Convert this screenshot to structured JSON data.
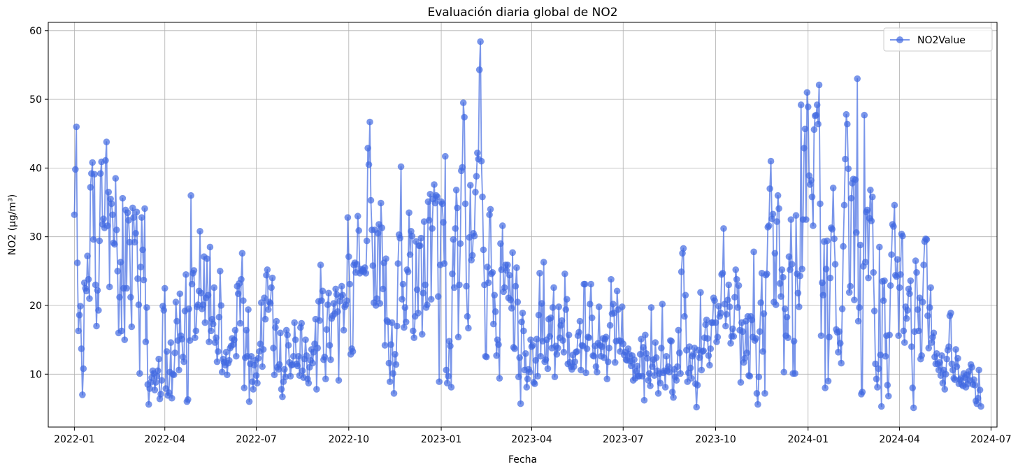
{
  "chart_data": {
    "type": "line",
    "title": "Evaluación diaria global de NO2",
    "xlabel": "Fecha",
    "ylabel": "NO2 (µg/m³)",
    "x_axis": "date",
    "xlim": [
      "2021-12-06",
      "2024-07-07"
    ],
    "ylim": [
      2.3,
      61.2
    ],
    "x_ticks": [
      "2022-01",
      "2022-04",
      "2022-07",
      "2022-10",
      "2023-01",
      "2023-04",
      "2023-07",
      "2023-10",
      "2024-01",
      "2024-04",
      "2024-07"
    ],
    "y_ticks": [
      10,
      20,
      30,
      40,
      50,
      60
    ],
    "grid": true,
    "legend": "top-right",
    "marker": "circle",
    "series": [
      {
        "name": "NO2Value",
        "color": "#4169e1",
        "x_start": "2022-01-01",
        "x_step_days": 1,
        "values": [
          33.2,
          39.8,
          46,
          26.2,
          16.3,
          18.6,
          19.9,
          13.7,
          7,
          10.8,
          23.3,
          22.5,
          22.1,
          27.2,
          23.8,
          21,
          37.2,
          39.2,
          40.8,
          29.6,
          39.1,
          23,
          17,
          22.2,
          19.3,
          29.4,
          39.2,
          40.9,
          31.8,
          32.6,
          31.3,
          41.1,
          43.8,
          31.6,
          36.5,
          22.7,
          35.5,
          34.8,
          33.2,
          29.1,
          28.9,
          38.5,
          31,
          25,
          16,
          21.2,
          26.3,
          16.3,
          35.6,
          22.5,
          15,
          33.9,
          22.5,
          33.5,
          32.4,
          29.2,
          21.2,
          16.9,
          34.2,
          32.8,
          29.2,
          30.5,
          33.6,
          23.9,
          20.1,
          10.1,
          25.6,
          32.8,
          28.1,
          23.7,
          34.1,
          14.7,
          19.7,
          8.5,
          5.6,
          7.9,
          8.8,
          9.5,
          10.5,
          10.1,
          7.7,
          8.8,
          9.7,
          10.5,
          12.2,
          6.4,
          7.1,
          9.1,
          19.9,
          19.3,
          22.5,
          7.9,
          13.3,
          6.9,
          7.3,
          10.3,
          14.6,
          6.5,
          10,
          9.9,
          13.1,
          20.5,
          17.7,
          14.9,
          10.6,
          21.7,
          15.6,
          15.1,
          12.5,
          11.8,
          19.2,
          24.5,
          6,
          6.3,
          19.5,
          14.9,
          36,
          23.1,
          24.7,
          25.1,
          15.3,
          16.3,
          19.8,
          20.1,
          22.1,
          30.8,
          21.8,
          19.5,
          20.1,
          27.1,
          17.5,
          21.1,
          26.8,
          21.5,
          14.7,
          28.5,
          16.3,
          18,
          17.3,
          22.6,
          14.6,
          15.3,
          11.8,
          13.3,
          18.3,
          25,
          20,
          10.3,
          12.2,
          11.7,
          11.3,
          13.2,
          9.9,
          11.6,
          12,
          13.8,
          14.1,
          15.2,
          14.3,
          15,
          16.4,
          12.6,
          22.8,
          21.7,
          23.2,
          17.4,
          23.8,
          27.6,
          20.7,
          8,
          12.4,
          16.4,
          12.6,
          19.4,
          6,
          11.5,
          12.6,
          8.9,
          7.8,
          11.3,
          12,
          9.8,
          8.7,
          12.3,
          13.3,
          14.4,
          20.4,
          11.1,
          13.6,
          21.1,
          18,
          24.4,
          25.2,
          19.4,
          20.5,
          20.3,
          22.6,
          24,
          13.8,
          9.9,
          16.8,
          17.7,
          11,
          10.7,
          11.4,
          16,
          7.8,
          6.7,
          8.9,
          10.7,
          9.6,
          16.4,
          15.7,
          14.2,
          11.7,
          9.7,
          11.3,
          11.4,
          12.6,
          17.5,
          15,
          11.5,
          11.2,
          12.6,
          9.8,
          16.8,
          17.4,
          10.5,
          9.5,
          12.2,
          15,
          12.7,
          9.3,
          8.7,
          11,
          12,
          13.6,
          11.6,
          13.2,
          14.4,
          18,
          7.8,
          13.8,
          20.6,
          17.8,
          25.9,
          20.7,
          22.1,
          12.1,
          12.5,
          9.3,
          16.5,
          20.1,
          21.8,
          14.2,
          12.1,
          18.1,
          18.5,
          20.3,
          18.8,
          22.4,
          21.6,
          19.1,
          9.1,
          20.6,
          21.3,
          22.8,
          21.5,
          16.4,
          19.8,
          20.1,
          20.7,
          32.8,
          27.1,
          23.1,
          12.9,
          13.7,
          13.3,
          25.9,
          26.2,
          24.8,
          26,
          33,
          30.9,
          24.7,
          25.3,
          25,
          25.2,
          24.9,
          25.5,
          24.7,
          29.4,
          42.9,
          40.5,
          46.7,
          35.3,
          31,
          25.8,
          20.4,
          31,
          20,
          21,
          30.5,
          31.8,
          20.3,
          34.9,
          31.3,
          22.4,
          26.2,
          14.2,
          26.8,
          17.8,
          17.6,
          11.6,
          8.9,
          14.3,
          17.5,
          10.1,
          7.2,
          12.9,
          11.4,
          17,
          26.1,
          30.3,
          29.8,
          40.2,
          20.9,
          23.1,
          16.8,
          19.7,
          17.6,
          25.2,
          24.9,
          33.5,
          27.4,
          30.8,
          30.1,
          16.3,
          15.3,
          18.4,
          29.3,
          22.3,
          18.9,
          28.7,
          28.7,
          29.8,
          15.8,
          21.8,
          32.2,
          23,
          19.7,
          20.1,
          35.1,
          32.4,
          36.2,
          20.9,
          31.2,
          35.5,
          37.6,
          34.9,
          36,
          35.8,
          21.3,
          8.9,
          25.9,
          35.1,
          34.8,
          32.1,
          26.1,
          41.7,
          10.6,
          8.7,
          9.7,
          14.8,
          14.1,
          8.1,
          24.6,
          29.6,
          22.6,
          31.2,
          36.8,
          34.2,
          15.4,
          23,
          29,
          39.6,
          40.1,
          49.5,
          47.4,
          34.8,
          22.8,
          18.4,
          16.7,
          29.9,
          37.5,
          26.6,
          27.3,
          30.5,
          30.1,
          36.5,
          38.8,
          42.2,
          41.3,
          54.3,
          58.4,
          41,
          35.8,
          28.1,
          23,
          12.6,
          12.5,
          25.6,
          23.3,
          33.2,
          34,
          24.6,
          24.8,
          17.3,
          21.5,
          19.1,
          12.7,
          15,
          14.3,
          9.4,
          29,
          25.2,
          31.6,
          22,
          22.6,
          25.9,
          25.1,
          25.9,
          21.1,
          24.4,
          20.8,
          19.6,
          27.7,
          13.9,
          13.7,
          22.8,
          25.5,
          20.5,
          9.6,
          12.4,
          5.7,
          17.6,
          18.9,
          16.3,
          10.6,
          13,
          8.1,
          9.3,
          10.7,
          10.3,
          15,
          14,
          14.2,
          8.8,
          8.6,
          12,
          15.1,
          9.7,
          18.6,
          24.7,
          12.6,
          20.3,
          14.8,
          26.3,
          11.8,
          12.1,
          15,
          10.8,
          18,
          15.5,
          18.2,
          13.8,
          19.7,
          22.6,
          9.6,
          14.1,
          12.9,
          13.8,
          19.8,
          15.3,
          17.1,
          17.8,
          14.9,
          13.2,
          24.6,
          19.4,
          20.9,
          11.5,
          15.7,
          11.7,
          11.1,
          10.7,
          12.8,
          11.1,
          11.8,
          13.2,
          13.3,
          15.6,
          16.1,
          17.7,
          10.6,
          14.2,
          14.1,
          23.1,
          23.1,
          10.2,
          13.7,
          15.4,
          15.3,
          20.2,
          23.1,
          18.2,
          12.7,
          12.6,
          14.1,
          11.1,
          10.3,
          14.5,
          19.8,
          14.2,
          12.6,
          14,
          15.2,
          12.4,
          15.1,
          15.4,
          9.3,
          11.8,
          13.8,
          17.1,
          23.8,
          18.8,
          20.2,
          18.9,
          11.7,
          14.8,
          22.1,
          19.4,
          14.9,
          13.3,
          14.8,
          19.8,
          14.4,
          12.8,
          13.2,
          12.1,
          12,
          13.7,
          12.9,
          11.9,
          11.2,
          12.7,
          9.1,
          12.1,
          9.4,
          10.4,
          11.2,
          9.7,
          9.7,
          12.9,
          15.1,
          9.7,
          13.9,
          6.2,
          15.7,
          13,
          12.3,
          9.1,
          10.1,
          8.3,
          19.7,
          11.1,
          12.1,
          9.8,
          14.6,
          12.4,
          10.5,
          7.2,
          10.1,
          8.7,
          13.8,
          20.2,
          10.2,
          10.5,
          8.1,
          12.6,
          10.5,
          11.1,
          10.3,
          14.9,
          14.8,
          7.4,
          6.6,
          10.7,
          9.6,
          9.1,
          11.1,
          16.4,
          13.1,
          10.1,
          24.9,
          27.6,
          28.3,
          18.4,
          21.5,
          13.5,
          8.9,
          10.2,
          14,
          10.9,
          9.4,
          12.6,
          12.9,
          13.8,
          8.6,
          5.2,
          8.4,
          13.5,
          12.4,
          21.9,
          10.6,
          13.3,
          13.4,
          15.3,
          17.2,
          17.9,
          15.2,
          12.7,
          11.3,
          13.7,
          17.5,
          17.5,
          21.1,
          20.7,
          17.5,
          14.7,
          15.4,
          19.9,
          18.4,
          18.9,
          24.5,
          24.7,
          31.2,
          20.2,
          17,
          18.7,
          20.8,
          23,
          19.8,
          14.5,
          15.5,
          16.6,
          15.5,
          21.2,
          25.2,
          23.8,
          19.7,
          22.9,
          16.4,
          8.8,
          17.5,
          16.2,
          11.7,
          12.3,
          17.7,
          13.1,
          18.4,
          9.8,
          9.7,
          18.4,
          17.9,
          15.4,
          27.8,
          14.9,
          15.2,
          7.2,
          5.6,
          9.6,
          16.2,
          20.4,
          24.7,
          13.3,
          18.8,
          7.2,
          24.4,
          24.6,
          31.4,
          31.6,
          37,
          41,
          32.6,
          33.3,
          20.5,
          27.6,
          20.1,
          32.2,
          36,
          34.1,
          23.2,
          21.3,
          25.2,
          24.1,
          10.3,
          19.5,
          15.6,
          18.3,
          15.3,
          27.1,
          25.2,
          32.5,
          26,
          10.1,
          14.8,
          10.1,
          33.1,
          24.6,
          21.8,
          19.8,
          24.3,
          49.2,
          25.3,
          32.5,
          42.9,
          45.7,
          32.5,
          51,
          48.9,
          38.9,
          37.6,
          38.2,
          35.8,
          31.6,
          45.6,
          47.6,
          47.7,
          49.2,
          46.4,
          52.1,
          34.8,
          15.6,
          23.3,
          21.5,
          29.3,
          8,
          25.3,
          29.4,
          9,
          15.4,
          24,
          31.3,
          31.1,
          37.1,
          29.7,
          26,
          16.5,
          16.1,
          13.2,
          16.2,
          14.5,
          11.6,
          19.5,
          28.6,
          34.6,
          41.3,
          47.8,
          46.4,
          39.9,
          21.9,
          22.8,
          35.6,
          37.8,
          38.4,
          20.8,
          38.3,
          30.6,
          53,
          17.7,
          19.7,
          28.8,
          7.1,
          7.4,
          25.7,
          47.7,
          26.3,
          33.6,
          33.9,
          24,
          32.7,
          36.8,
          32.3,
          35.8,
          24.8,
          19.2,
          11.5,
          9.3,
          8.1,
          10.8,
          28.5,
          12.8,
          5.3,
          23.5,
          20.7,
          23.6,
          12.6,
          15.6,
          8.4,
          6.8,
          15.7,
          22.9,
          27.4,
          31.8,
          31.5,
          34.6,
          24.4,
          24.2,
          26.7,
          15.6,
          22.6,
          24.5,
          30.4,
          30.1,
          16.3,
          14.6,
          19.8,
          18.1,
          19.3,
          22.4,
          21.7,
          23.6,
          14,
          8,
          5.1,
          16.2,
          26.5,
          24.8,
          19.4,
          16.3,
          21.1,
          12.2,
          12.7,
          20.5,
          25.9,
          29.3,
          29.7,
          29.6,
          18.5,
          13.8,
          19.7,
          22.6,
          14.6,
          15.4,
          16,
          12.5,
          11.5,
          13,
          11.5,
          10.6,
          11.7,
          9.8,
          12.7,
          8.7,
          10.6,
          7.8,
          10,
          12.2,
          13.5,
          14,
          18.5,
          18.9,
          11.5,
          10.6,
          9.4,
          9.2,
          13.6,
          11.1,
          12.3,
          8.6,
          9.2,
          9.4,
          8.5,
          8.3,
          10.1,
          9.5,
          8.1,
          9.9,
          8.6,
          10.4,
          9.1,
          11.4,
          11,
          8.5,
          9.2,
          8.4,
          6.1,
          5.7,
          6.5,
          10.6,
          7.7,
          5.3
        ]
      }
    ]
  }
}
